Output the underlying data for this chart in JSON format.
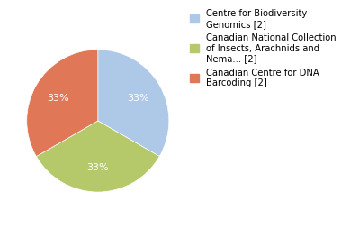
{
  "slices": [
    {
      "label": "Centre for Biodiversity\nGenomics [2]",
      "value": 33.33,
      "color": "#aec8e8"
    },
    {
      "label": "Canadian National Collection\nof Insects, Arachnids and\nNema... [2]",
      "value": 33.33,
      "color": "#b5c96a"
    },
    {
      "label": "Canadian Centre for DNA\nBarcoding [2]",
      "value": 33.34,
      "color": "#e07858"
    }
  ],
  "background_color": "#ffffff",
  "fontsize": 8,
  "legend_fontsize": 7.2,
  "startangle": 90
}
